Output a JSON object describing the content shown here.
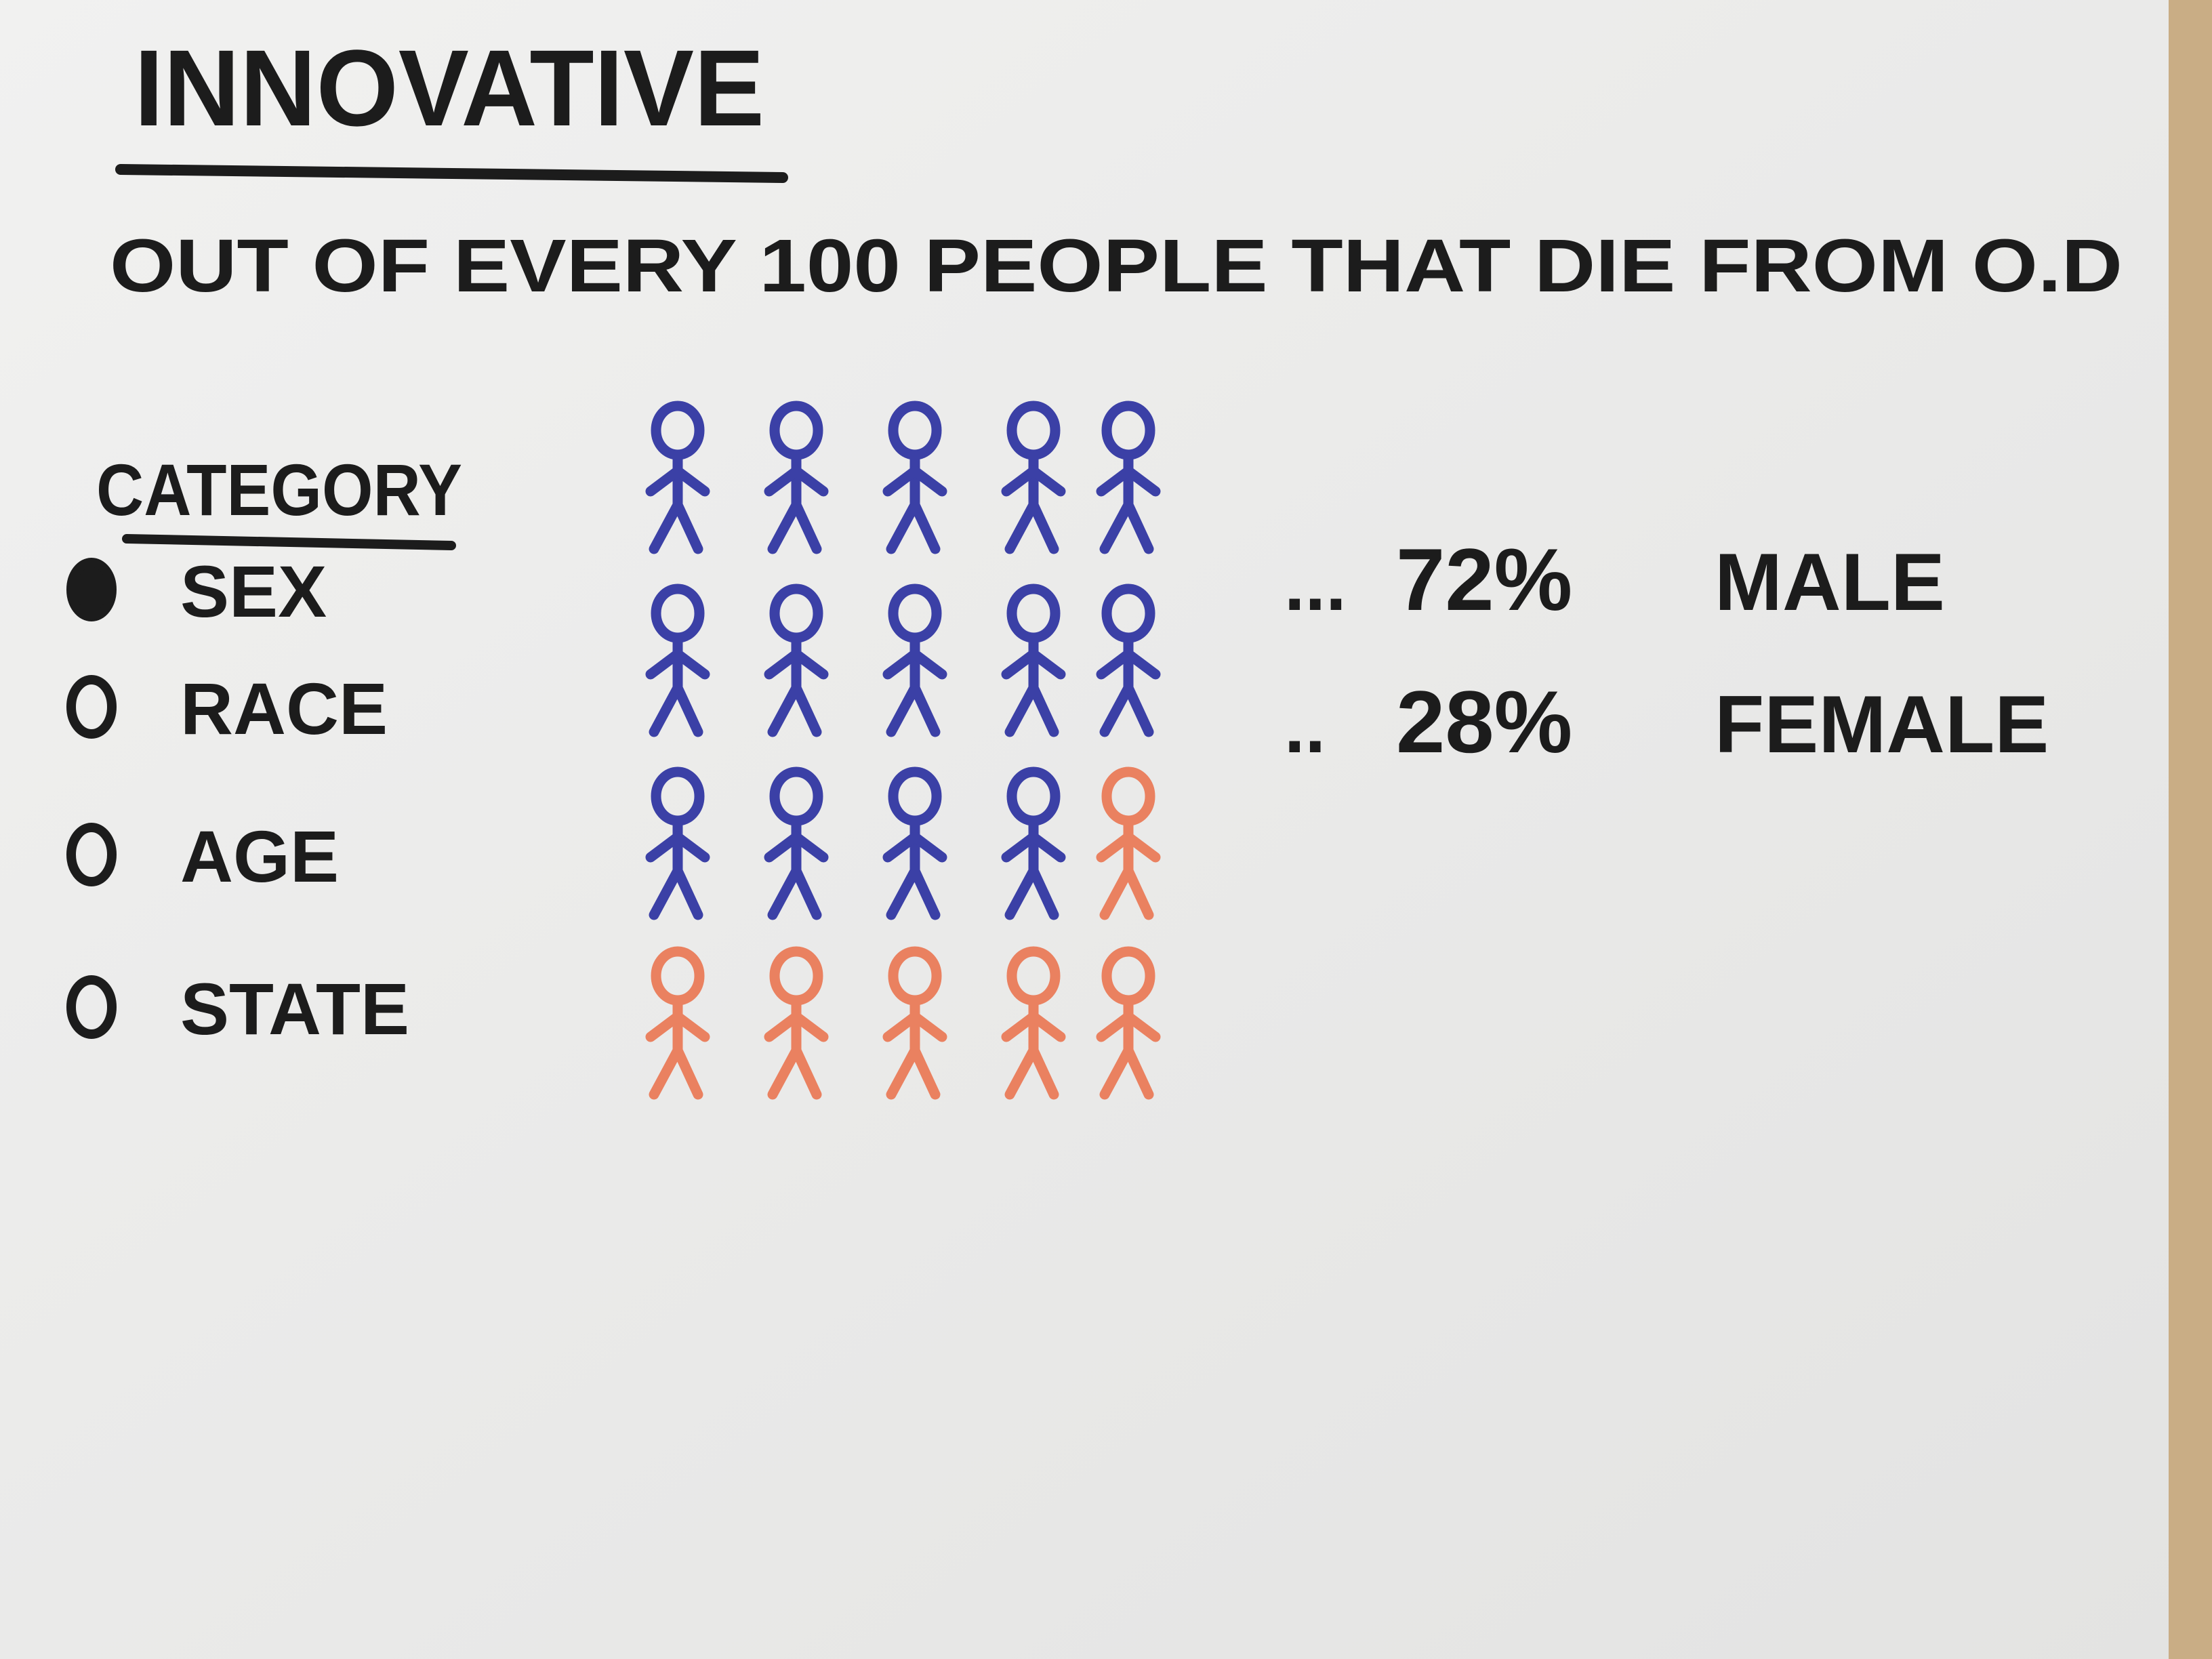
{
  "header": {
    "title": "INNOVATIVE",
    "subtitle": "OUT OF EVERY 100 PEOPLE THAT DIE FROM O.D"
  },
  "category_panel": {
    "heading": "CATEGORY",
    "options": [
      {
        "label": "SEX",
        "selected": true
      },
      {
        "label": "RACE",
        "selected": false
      },
      {
        "label": "AGE",
        "selected": false
      },
      {
        "label": "STATE",
        "selected": false
      }
    ]
  },
  "breakdown": [
    {
      "prefix": "...",
      "percent": "72%",
      "label": "MALE"
    },
    {
      "prefix": "..",
      "percent": "28%",
      "label": "FEMALE"
    }
  ]
}
